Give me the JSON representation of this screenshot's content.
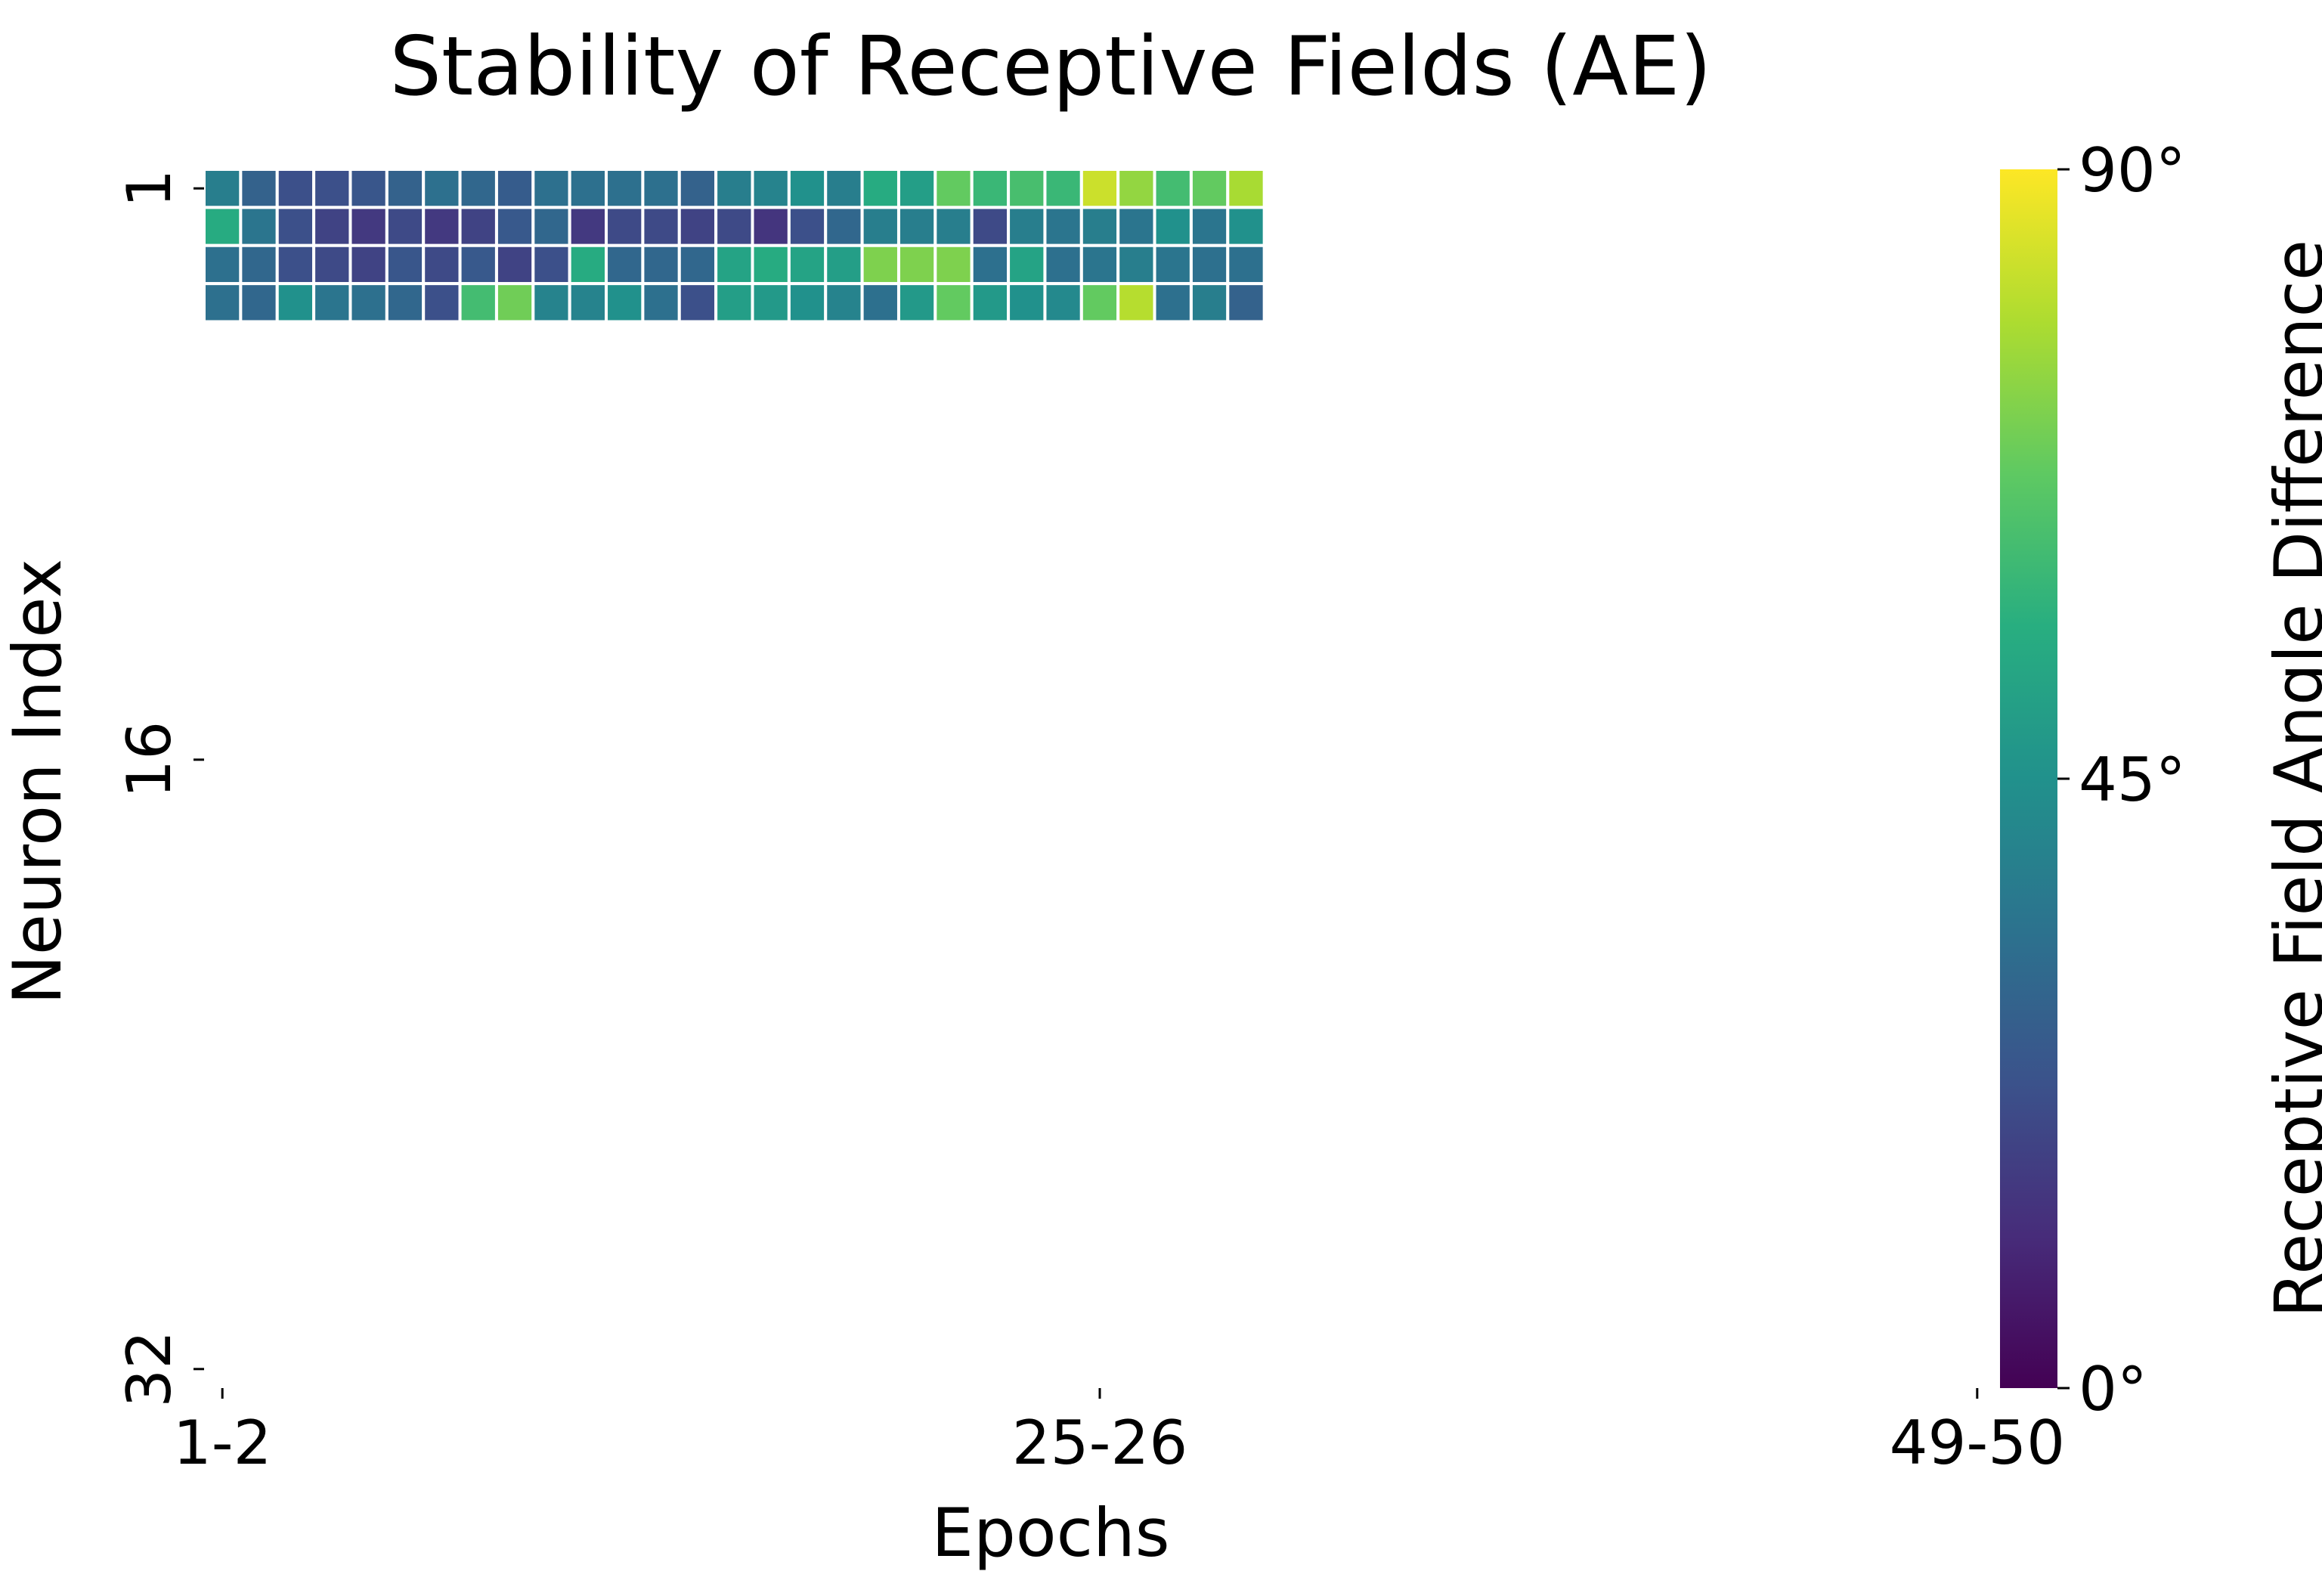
{
  "chart_data": {
    "type": "heatmap",
    "title": "Stability of Receptive Fields (AE)",
    "xlabel": "Epochs",
    "ylabel": "Neuron Index",
    "x_tick_labels": [
      "1-2",
      "25-26",
      "49-50"
    ],
    "x_tick_positions": [
      1,
      25,
      49
    ],
    "y_tick_labels": [
      "1",
      "16",
      "32"
    ],
    "y_tick_positions": [
      1,
      16,
      32
    ],
    "n_columns": 49,
    "n_rows": 32,
    "columns_filled": 29,
    "rows_filled": 4,
    "colormap": "viridis",
    "colorbar": {
      "label": "Receptive Field Angle Difference",
      "range": [
        0,
        90
      ],
      "tick_labels": [
        "0°",
        "45°",
        "90°"
      ],
      "tick_values": [
        0,
        45,
        90
      ]
    },
    "values": [
      [
        38,
        28,
        22,
        22,
        24,
        28,
        33,
        30,
        26,
        33,
        33,
        33,
        33,
        28,
        38,
        40,
        45,
        38,
        55,
        50,
        68,
        60,
        63,
        60,
        83,
        75,
        62,
        68,
        78
      ],
      [
        55,
        35,
        22,
        18,
        15,
        20,
        15,
        18,
        25,
        30,
        15,
        20,
        20,
        18,
        20,
        14,
        22,
        30,
        38,
        38,
        38,
        20,
        38,
        35,
        38,
        35,
        45,
        35,
        45
      ],
      [
        33,
        30,
        22,
        20,
        18,
        24,
        20,
        25,
        18,
        22,
        55,
        30,
        30,
        30,
        52,
        55,
        52,
        50,
        72,
        72,
        72,
        33,
        52,
        33,
        35,
        38,
        35,
        33,
        33
      ],
      [
        33,
        30,
        45,
        35,
        33,
        30,
        22,
        62,
        70,
        40,
        40,
        45,
        33,
        22,
        50,
        48,
        45,
        40,
        33,
        48,
        68,
        48,
        45,
        42,
        68,
        80,
        33,
        38,
        28
      ]
    ]
  }
}
